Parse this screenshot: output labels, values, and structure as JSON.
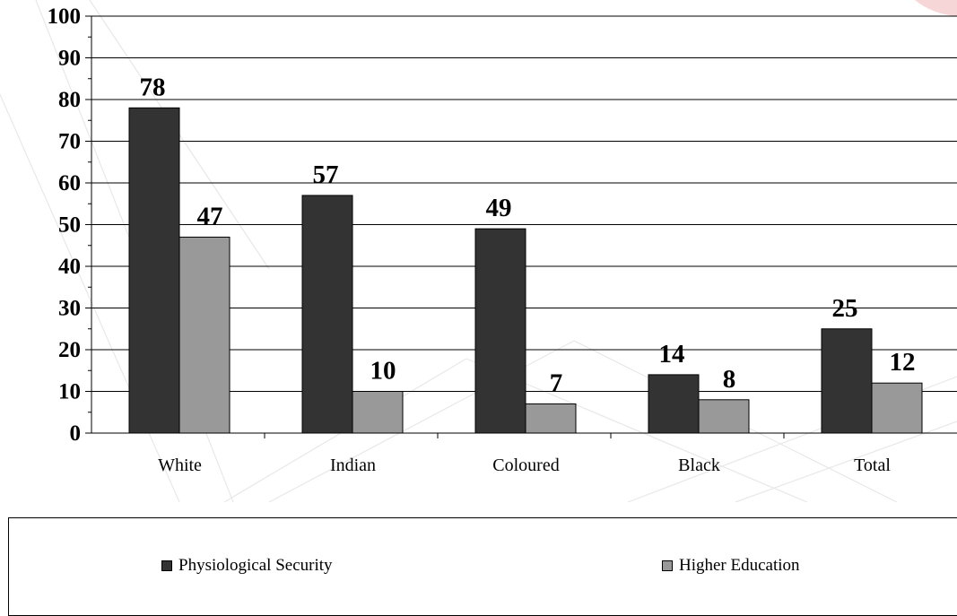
{
  "chart_data": {
    "type": "bar",
    "categories": [
      "White",
      "Indian",
      "Coloured",
      "Black",
      "Total"
    ],
    "series": [
      {
        "name": "Physiological Security",
        "values": [
          78,
          57,
          49,
          14,
          25
        ],
        "color": "#333333"
      },
      {
        "name": "Higher Education",
        "values": [
          47,
          10,
          7,
          8,
          12
        ],
        "color": "#999999"
      }
    ],
    "yticks": [
      "0",
      "10",
      "20",
      "30",
      "40",
      "50",
      "60",
      "70",
      "80",
      "90",
      "100"
    ],
    "ylim": [
      0,
      100
    ],
    "grid": true,
    "legend_position": "bottom"
  }
}
